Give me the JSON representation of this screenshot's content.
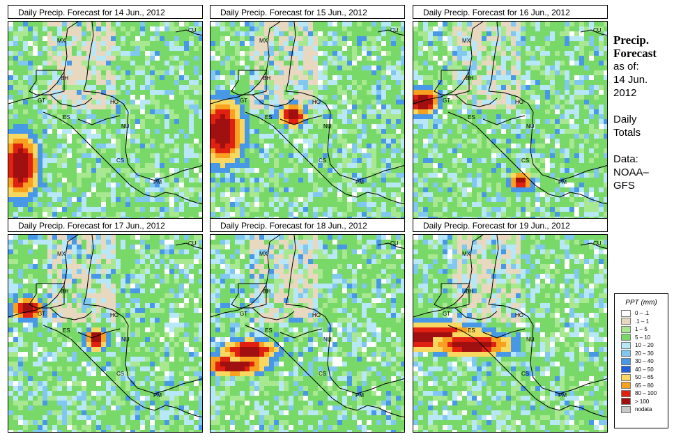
{
  "panels": [
    {
      "title": "Daily Precip. Forecast for  14 Jun., 2012",
      "day": 0
    },
    {
      "title": "Daily Precip. Forecast for  15 Jun., 2012",
      "day": 1
    },
    {
      "title": "Daily Precip. Forecast for  16 Jun., 2012",
      "day": 2
    },
    {
      "title": "Daily Precip. Forecast for  17 Jun., 2012",
      "day": 3
    },
    {
      "title": "Daily Precip. Forecast for  18 Jun., 2012",
      "day": 4
    },
    {
      "title": "Daily Precip. Forecast for  19 Jun., 2012",
      "day": 5
    }
  ],
  "country_labels": [
    "MX",
    "CU",
    "BH",
    "GT",
    "HO",
    "ES",
    "NU",
    "CS",
    "PM"
  ],
  "sidebar": {
    "title_line1": "Precip.",
    "title_line2": "Forecast",
    "asof_line1": "as of:",
    "asof_line2": "14 Jun.",
    "asof_line3": "2012",
    "daily_line1": "Daily",
    "daily_line2": "Totals",
    "data_line1": "Data:",
    "data_line2": "NOAA–",
    "data_line3": "GFS"
  },
  "legend": {
    "title": "PPT (mm)",
    "items": [
      {
        "label": "0 – .1",
        "color": "#ffffff"
      },
      {
        "label": ".1 – 1",
        "color": "#e8d8c0"
      },
      {
        "label": "1 – 5",
        "color": "#a8e890"
      },
      {
        "label": "5 – 10",
        "color": "#78d868"
      },
      {
        "label": "10 – 20",
        "color": "#b8e8f8"
      },
      {
        "label": "20 – 30",
        "color": "#80c8f0"
      },
      {
        "label": "30 – 40",
        "color": "#4898e8"
      },
      {
        "label": "40 – 50",
        "color": "#2060d8"
      },
      {
        "label": "50 – 65",
        "color": "#f8d860"
      },
      {
        "label": "65 – 80",
        "color": "#f8a020"
      },
      {
        "label": "80 – 100",
        "color": "#e02010"
      },
      {
        "label": "> 100",
        "color": "#a01010"
      },
      {
        "label": "nodata",
        "color": "#c8c8c8"
      }
    ]
  }
}
